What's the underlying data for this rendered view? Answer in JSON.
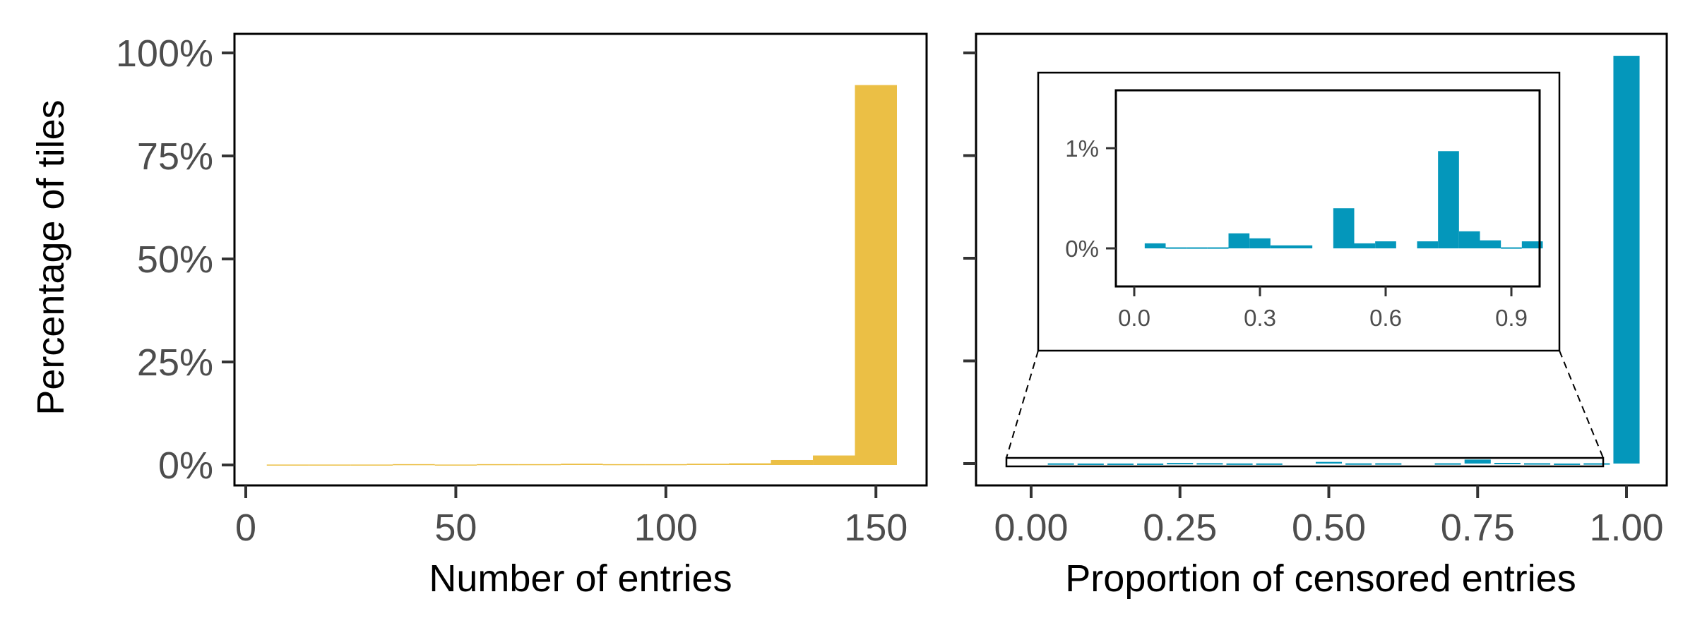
{
  "colors": {
    "entries_fill": "#ebbf45",
    "censored_fill": "#0497bb",
    "axis": "#333333",
    "text": "#4d4d4d"
  },
  "shared_ylabel": "Percentage of tiles",
  "chart_data": [
    {
      "type": "bar",
      "xlabel": "Number of entries",
      "ylabel": "Percentage of tiles",
      "xlim": [
        0,
        155
      ],
      "ylim": [
        0,
        100
      ],
      "x_ticks": [
        0,
        50,
        100,
        150
      ],
      "x_tick_labels": [
        "0",
        "50",
        "100",
        "150"
      ],
      "y_ticks": [
        0,
        25,
        50,
        75,
        100
      ],
      "y_tick_labels": [
        "0%",
        "25%",
        "50%",
        "75%",
        "100%"
      ],
      "bin_width": 10,
      "bins": [
        {
          "x": 10,
          "value": 0.1
        },
        {
          "x": 20,
          "value": 0.1
        },
        {
          "x": 30,
          "value": 0.1
        },
        {
          "x": 40,
          "value": 0.2
        },
        {
          "x": 50,
          "value": 0.1
        },
        {
          "x": 60,
          "value": 0.2
        },
        {
          "x": 70,
          "value": 0.2
        },
        {
          "x": 80,
          "value": 0.3
        },
        {
          "x": 90,
          "value": 0.2
        },
        {
          "x": 100,
          "value": 0.2
        },
        {
          "x": 110,
          "value": 0.3
        },
        {
          "x": 120,
          "value": 0.4
        },
        {
          "x": 130,
          "value": 1.2
        },
        {
          "x": 140,
          "value": 2.3
        },
        {
          "x": 150,
          "value": 92.2
        }
      ]
    },
    {
      "type": "bar",
      "xlabel": "Proportion of censored entries",
      "ylabel": "",
      "xlim": [
        -0.04,
        1.04
      ],
      "ylim": [
        0,
        100
      ],
      "x_ticks": [
        0,
        0.25,
        0.5,
        0.75,
        1
      ],
      "x_tick_labels": [
        "0.00",
        "0.25",
        "0.50",
        "0.75",
        "1.00"
      ],
      "y_ticks": [
        0,
        25,
        50,
        75,
        100
      ],
      "bin_width": 0.05,
      "bins": [
        {
          "x": 0.05,
          "value": 0.05
        },
        {
          "x": 0.1,
          "value": 0.01
        },
        {
          "x": 0.15,
          "value": 0.01
        },
        {
          "x": 0.2,
          "value": 0.01
        },
        {
          "x": 0.25,
          "value": 0.15
        },
        {
          "x": 0.3,
          "value": 0.1
        },
        {
          "x": 0.35,
          "value": 0.03
        },
        {
          "x": 0.4,
          "value": 0.03
        },
        {
          "x": 0.5,
          "value": 0.4
        },
        {
          "x": 0.55,
          "value": 0.05
        },
        {
          "x": 0.6,
          "value": 0.07
        },
        {
          "x": 0.7,
          "value": 0.07
        },
        {
          "x": 0.75,
          "value": 0.97
        },
        {
          "x": 0.8,
          "value": 0.17
        },
        {
          "x": 0.85,
          "value": 0.08
        },
        {
          "x": 0.9,
          "value": 0.01
        },
        {
          "x": 0.95,
          "value": 0.07
        },
        {
          "x": 1.0,
          "value": 99.3
        }
      ],
      "inset": {
        "xlim": [
          -0.03,
          0.97
        ],
        "ylim": [
          -0.37,
          1.5
        ],
        "x_ticks": [
          0,
          0.3,
          0.6,
          0.9
        ],
        "x_tick_labels": [
          "0.0",
          "0.3",
          "0.6",
          "0.9"
        ],
        "y_ticks": [
          0,
          1
        ],
        "y_tick_labels": [
          "0%",
          "1%"
        ]
      }
    }
  ]
}
